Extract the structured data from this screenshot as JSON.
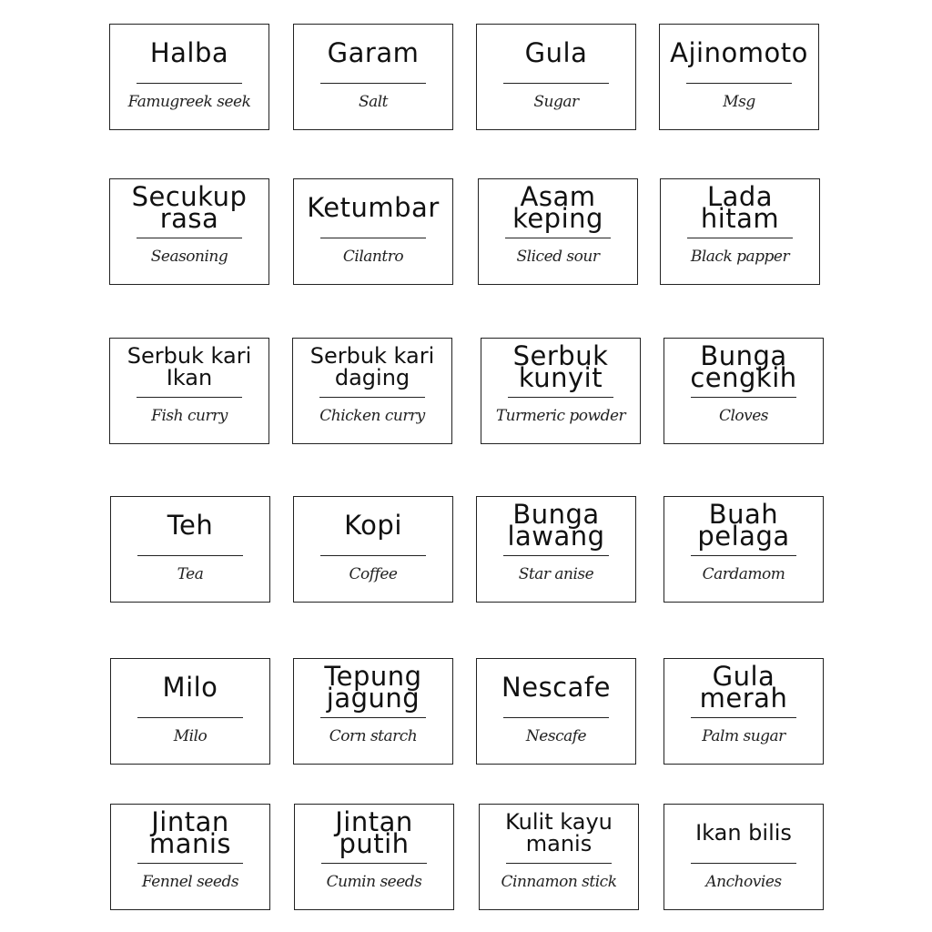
{
  "labels": [
    {
      "name": "Halba",
      "subtitle": "Famugreek seek"
    },
    {
      "name": "Garam",
      "subtitle": "Salt"
    },
    {
      "name": "Gula",
      "subtitle": "Sugar"
    },
    {
      "name": "Ajinomoto",
      "subtitle": "Msg"
    },
    {
      "name": "Secukup\nrasa",
      "subtitle": "Seasoning"
    },
    {
      "name": "Ketumbar",
      "subtitle": "Cilantro"
    },
    {
      "name": "Asam\nkeping",
      "subtitle": "Sliced sour"
    },
    {
      "name": "Lada\nhitam",
      "subtitle": "Black papper"
    },
    {
      "name": "Serbuk kari\nIkan",
      "subtitle": "Fish curry"
    },
    {
      "name": "Serbuk kari\ndaging",
      "subtitle": "Chicken curry"
    },
    {
      "name": "Serbuk\nkunyit",
      "subtitle": "Turmeric powder"
    },
    {
      "name": "Bunga\ncengkih",
      "subtitle": "Cloves"
    },
    {
      "name": "Teh",
      "subtitle": "Tea"
    },
    {
      "name": "Kopi",
      "subtitle": "Coffee"
    },
    {
      "name": "Bunga\nlawang",
      "subtitle": "Star anise"
    },
    {
      "name": "Buah\npelaga",
      "subtitle": "Cardamom"
    },
    {
      "name": "Milo",
      "subtitle": "Milo"
    },
    {
      "name": "Tepung\njagung",
      "subtitle": "Corn starch"
    },
    {
      "name": "Nescafe",
      "subtitle": "Nescafe"
    },
    {
      "name": "Gula\nmerah",
      "subtitle": "Palm sugar"
    },
    {
      "name": "Jintan\nmanis",
      "subtitle": "Fennel seeds"
    },
    {
      "name": "Jintan\nputih",
      "subtitle": "Cumin seeds"
    },
    {
      "name": "Kulit kayu\nmanis",
      "subtitle": "Cinnamon stick"
    },
    {
      "name": "Ikan bilis",
      "subtitle": "Anchovies"
    }
  ]
}
